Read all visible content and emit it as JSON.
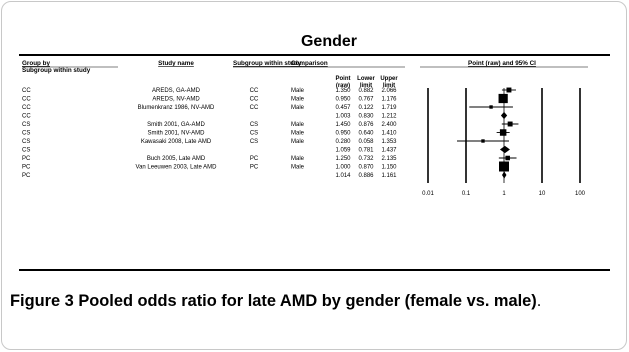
{
  "figure": {
    "title": "Gender",
    "caption_label": "Figure 3",
    "caption_text": "Pooled odds ratio for late AMD by gender (female vs. male)",
    "caption_end": "."
  },
  "columns": {
    "group_by": "Group by",
    "subgroup_within_study": "Subgroup within study",
    "study_name": "Study name",
    "subgroup_col": "Subgroup within study",
    "comparison": "Comparison",
    "point": [
      "Point",
      "(raw)"
    ],
    "lower": [
      "Lower",
      "limit"
    ],
    "upper": [
      "Upper",
      "limit"
    ],
    "ci_header": "Point (raw) and 95% CI"
  },
  "chart_data": {
    "type": "forest",
    "x_scale": "log",
    "x_ticks": [
      0.01,
      0.1,
      1,
      10,
      100
    ],
    "x_tick_labels": [
      "0.01",
      "0.1",
      "1",
      "10",
      "100"
    ],
    "rows": [
      {
        "group": "CC",
        "study": "AREDS, GA-AMD",
        "subgroup": "CC",
        "comparison": "Male",
        "point": "1.350",
        "lower": "0.882",
        "upper": "2.066",
        "kind": "study",
        "weight": 0.35
      },
      {
        "group": "CC",
        "study": "AREDS, NV-AMD",
        "subgroup": "CC",
        "comparison": "Male",
        "point": "0.950",
        "lower": "0.767",
        "upper": "1.176",
        "kind": "study",
        "weight": 0.9
      },
      {
        "group": "CC",
        "study": "Blumenkranz 1986, NV-AMD",
        "subgroup": "CC",
        "comparison": "Male",
        "point": "0.457",
        "lower": "0.122",
        "upper": "1.719",
        "kind": "study",
        "weight": 0.15
      },
      {
        "group": "CC",
        "study": "",
        "subgroup": "",
        "comparison": "",
        "point": "1.003",
        "lower": "0.830",
        "upper": "1.212",
        "kind": "summary"
      },
      {
        "group": "CS",
        "study": "Smith 2001, GA-AMD",
        "subgroup": "CS",
        "comparison": "Male",
        "point": "1.450",
        "lower": "0.876",
        "upper": "2.400",
        "kind": "study",
        "weight": 0.35
      },
      {
        "group": "CS",
        "study": "Smith 2001, NV-AMD",
        "subgroup": "CS",
        "comparison": "Male",
        "point": "0.950",
        "lower": "0.640",
        "upper": "1.410",
        "kind": "study",
        "weight": 0.55
      },
      {
        "group": "CS",
        "study": "Kawasaki 2008, Late AMD",
        "subgroup": "CS",
        "comparison": "Male",
        "point": "0.280",
        "lower": "0.058",
        "upper": "1.353",
        "kind": "study",
        "weight": 0.15
      },
      {
        "group": "CS",
        "study": "",
        "subgroup": "",
        "comparison": "",
        "point": "1.059",
        "lower": "0.781",
        "upper": "1.437",
        "kind": "summary"
      },
      {
        "group": "PC",
        "study": "Buch 2005, Late AMD",
        "subgroup": "PC",
        "comparison": "Male",
        "point": "1.250",
        "lower": "0.732",
        "upper": "2.135",
        "kind": "study",
        "weight": 0.3
      },
      {
        "group": "PC",
        "study": "Van Leeuwen 2003, Late AMD",
        "subgroup": "PC",
        "comparison": "Male",
        "point": "1.000",
        "lower": "0.870",
        "upper": "1.150",
        "kind": "study",
        "weight": 1.0
      },
      {
        "group": "PC",
        "study": "",
        "subgroup": "",
        "comparison": "",
        "point": "1.014",
        "lower": "0.886",
        "upper": "1.161",
        "kind": "summary"
      }
    ]
  }
}
